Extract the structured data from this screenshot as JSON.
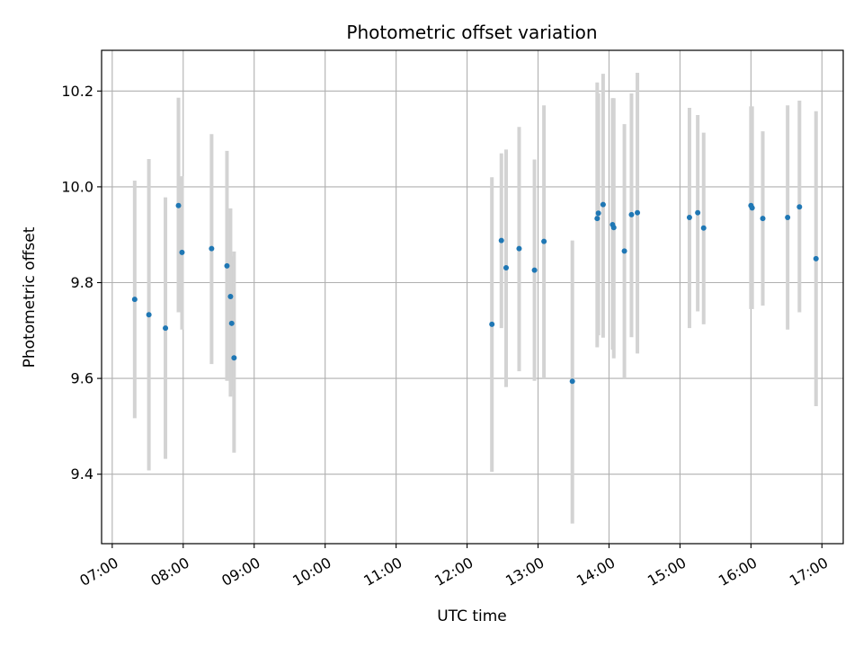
{
  "chart_data": {
    "type": "scatter",
    "title": "Photometric offset variation",
    "xlabel": "UTC time",
    "ylabel": "Photometric offset",
    "x_ticks": [
      "07:00",
      "08:00",
      "09:00",
      "10:00",
      "11:00",
      "12:00",
      "13:00",
      "14:00",
      "15:00",
      "16:00",
      "17:00"
    ],
    "y_ticks": [
      "9.4",
      "9.6",
      "9.8",
      "10.0",
      "10.2"
    ],
    "xlim": [
      "06:51",
      "17:18"
    ],
    "ylim": [
      9.255,
      10.285
    ],
    "grid": true,
    "colors": {
      "point": "#1f77b4",
      "errorbar": "#d3d3d3",
      "grid": "#b0b0b0"
    },
    "points": [
      {
        "x": "07:19",
        "y": 9.765,
        "lo": 9.517,
        "hi": 10.013
      },
      {
        "x": "07:31",
        "y": 9.733,
        "lo": 9.408,
        "hi": 10.058
      },
      {
        "x": "07:45",
        "y": 9.705,
        "lo": 9.432,
        "hi": 9.978
      },
      {
        "x": "07:56",
        "y": 9.961,
        "lo": 9.738,
        "hi": 10.186
      },
      {
        "x": "07:59",
        "y": 9.863,
        "lo": 9.702,
        "hi": 10.022
      },
      {
        "x": "08:24",
        "y": 9.871,
        "lo": 9.63,
        "hi": 10.11
      },
      {
        "x": "08:37",
        "y": 9.835,
        "lo": 9.595,
        "hi": 10.075
      },
      {
        "x": "08:40",
        "y": 9.771,
        "lo": 9.562,
        "hi": 9.955
      },
      {
        "x": "08:41",
        "y": 9.715,
        "lo": 9.575,
        "hi": 9.855
      },
      {
        "x": "08:43",
        "y": 9.643,
        "lo": 9.445,
        "hi": 9.865
      },
      {
        "x": "12:21",
        "y": 9.713,
        "lo": 9.405,
        "hi": 10.02
      },
      {
        "x": "12:29",
        "y": 9.888,
        "lo": 9.705,
        "hi": 10.07
      },
      {
        "x": "12:33",
        "y": 9.831,
        "lo": 9.582,
        "hi": 10.078
      },
      {
        "x": "12:44",
        "y": 9.871,
        "lo": 9.615,
        "hi": 10.125
      },
      {
        "x": "12:57",
        "y": 9.826,
        "lo": 9.595,
        "hi": 10.057
      },
      {
        "x": "13:05",
        "y": 9.886,
        "lo": 9.6,
        "hi": 10.17
      },
      {
        "x": "13:29",
        "y": 9.594,
        "lo": 9.297,
        "hi": 9.888
      },
      {
        "x": "13:50",
        "y": 9.934,
        "lo": 9.665,
        "hi": 10.218
      },
      {
        "x": "13:51",
        "y": 9.945,
        "lo": 9.69,
        "hi": 10.195
      },
      {
        "x": "13:55",
        "y": 9.963,
        "lo": 9.685,
        "hi": 10.236
      },
      {
        "x": "14:03",
        "y": 9.921,
        "lo": 9.66,
        "hi": 10.185
      },
      {
        "x": "14:04",
        "y": 9.915,
        "lo": 9.642,
        "hi": 10.185
      },
      {
        "x": "14:13",
        "y": 9.866,
        "lo": 9.6,
        "hi": 10.131
      },
      {
        "x": "14:19",
        "y": 9.942,
        "lo": 9.686,
        "hi": 10.195
      },
      {
        "x": "14:24",
        "y": 9.946,
        "lo": 9.652,
        "hi": 10.238
      },
      {
        "x": "15:08",
        "y": 9.936,
        "lo": 9.705,
        "hi": 10.165
      },
      {
        "x": "15:15",
        "y": 9.946,
        "lo": 9.74,
        "hi": 10.15
      },
      {
        "x": "15:20",
        "y": 9.914,
        "lo": 9.713,
        "hi": 10.113
      },
      {
        "x": "16:00",
        "y": 9.961,
        "lo": 9.745,
        "hi": 10.168
      },
      {
        "x": "16:01",
        "y": 9.956,
        "lo": 9.745,
        "hi": 10.168
      },
      {
        "x": "16:10",
        "y": 9.934,
        "lo": 9.752,
        "hi": 10.116
      },
      {
        "x": "16:31",
        "y": 9.936,
        "lo": 9.702,
        "hi": 10.17
      },
      {
        "x": "16:41",
        "y": 9.958,
        "lo": 9.738,
        "hi": 10.18
      },
      {
        "x": "16:55",
        "y": 9.85,
        "lo": 9.542,
        "hi": 10.158
      }
    ]
  }
}
